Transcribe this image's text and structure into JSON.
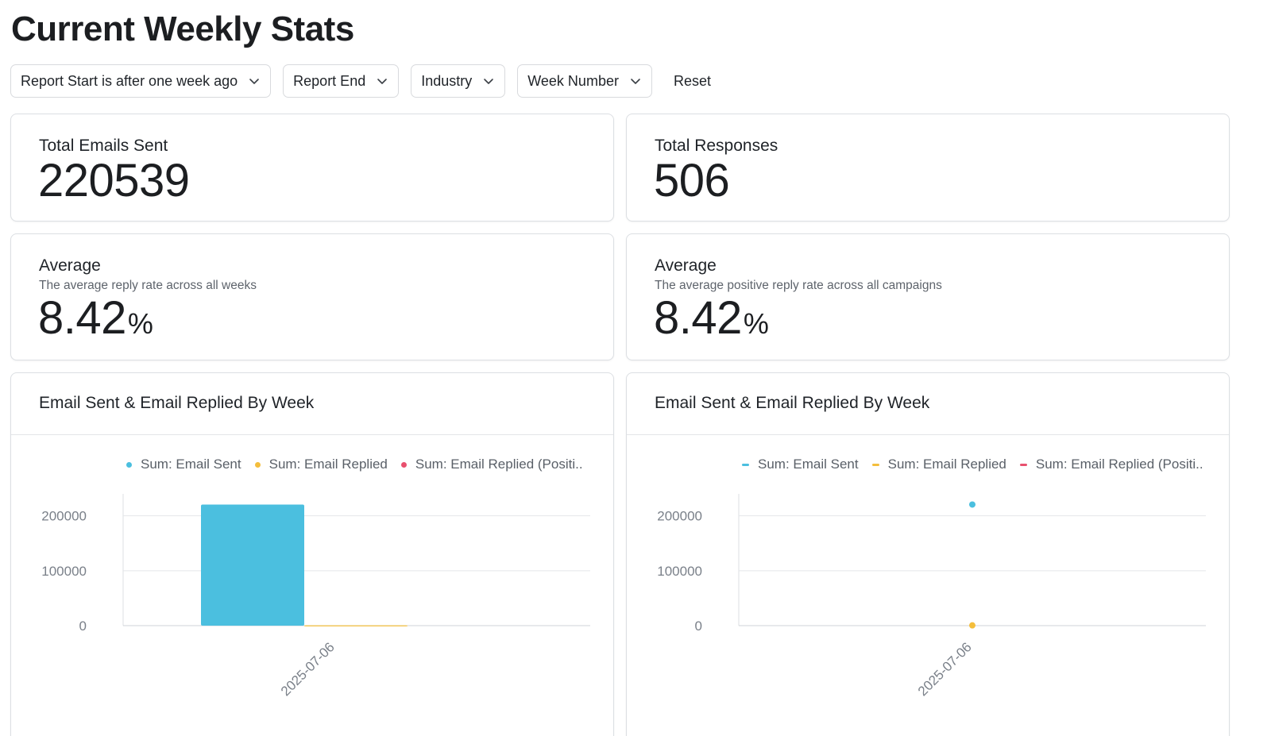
{
  "page": {
    "title": "Current Weekly Stats"
  },
  "filters": {
    "items": [
      {
        "label": "Report Start is after one week ago"
      },
      {
        "label": "Report End"
      },
      {
        "label": "Industry"
      },
      {
        "label": "Week Number"
      }
    ],
    "reset_label": "Reset"
  },
  "kpis": {
    "total_emails_sent": {
      "label": "Total Emails Sent",
      "value": "220539"
    },
    "total_responses": {
      "label": "Total Responses",
      "value": "506"
    },
    "avg_reply_rate": {
      "label": "Average",
      "description": "The average reply rate across all weeks",
      "value": "8.42",
      "unit": "%"
    },
    "avg_positive_reply_rate": {
      "label": "Average",
      "description": "The average positive reply rate across all campaigns",
      "value": "8.42",
      "unit": "%"
    }
  },
  "colors": {
    "email_sent": "#4bbfdf",
    "email_replied": "#f4be3c",
    "email_replied_positive": "#e8506e"
  },
  "chart_data": [
    {
      "type": "bar",
      "title": "Email Sent & Email Replied By Week",
      "categories": [
        "2025-07-06"
      ],
      "series": [
        {
          "name": "Sum: Email Sent",
          "values": [
            220539
          ]
        },
        {
          "name": "Sum: Email Replied",
          "values": [
            506
          ]
        },
        {
          "name": "Sum: Email Replied (Positi..",
          "values": [
            0
          ]
        }
      ],
      "yticks": [
        "200000",
        "100000",
        "0"
      ],
      "ylim": [
        0,
        240000
      ],
      "legend": "top"
    },
    {
      "type": "line",
      "title": "Email Sent & Email Replied By Week",
      "categories": [
        "2025-07-06"
      ],
      "series": [
        {
          "name": "Sum: Email Sent",
          "values": [
            220539
          ]
        },
        {
          "name": "Sum: Email Replied",
          "values": [
            506
          ]
        },
        {
          "name": "Sum: Email Replied (Positi..",
          "values": [
            0
          ]
        }
      ],
      "yticks": [
        "200000",
        "100000",
        "0"
      ],
      "ylim": [
        0,
        240000
      ],
      "legend": "top"
    }
  ]
}
